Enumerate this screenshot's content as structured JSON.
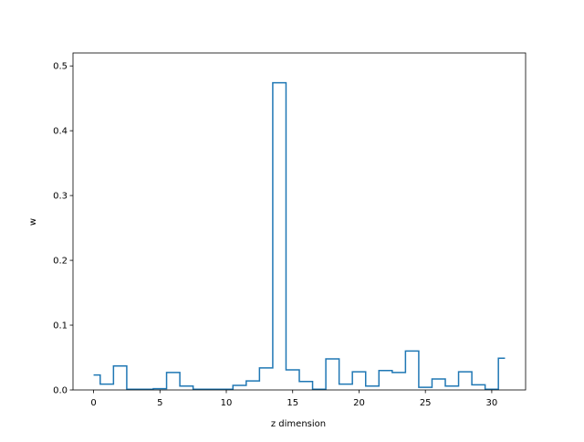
{
  "chart_data": {
    "type": "step",
    "xlabel": "z dimension",
    "ylabel": "w",
    "xlim": [
      -1.55,
      32.55
    ],
    "ylim": [
      0,
      0.52
    ],
    "xticks": [
      0,
      5,
      10,
      15,
      20,
      25,
      30
    ],
    "xtick_labels": [
      "0",
      "5",
      "10",
      "15",
      "20",
      "25",
      "30"
    ],
    "yticks": [
      0,
      0.1,
      0.2,
      0.3,
      0.4,
      0.5
    ],
    "ytick_labels": [
      "0.0",
      "0.1",
      "0.2",
      "0.3",
      "0.4",
      "0.5"
    ],
    "step_where": "mid",
    "x": [
      0,
      1,
      2,
      3,
      4,
      5,
      6,
      7,
      8,
      9,
      10,
      11,
      12,
      13,
      14,
      15,
      16,
      17,
      18,
      19,
      20,
      21,
      22,
      23,
      24,
      25,
      26,
      27,
      28,
      29,
      30,
      31
    ],
    "values": [
      0.023,
      0.009,
      0.037,
      0.001,
      0.001,
      0.002,
      0.027,
      0.006,
      0.001,
      0.001,
      0.001,
      0.007,
      0.014,
      0.034,
      0.474,
      0.031,
      0.013,
      0.001,
      0.048,
      0.009,
      0.028,
      0.006,
      0.03,
      0.027,
      0.06,
      0.004,
      0.017,
      0.006,
      0.028,
      0.008,
      0.001,
      0.049
    ],
    "line_color": "#1f77b4",
    "grid": false
  }
}
